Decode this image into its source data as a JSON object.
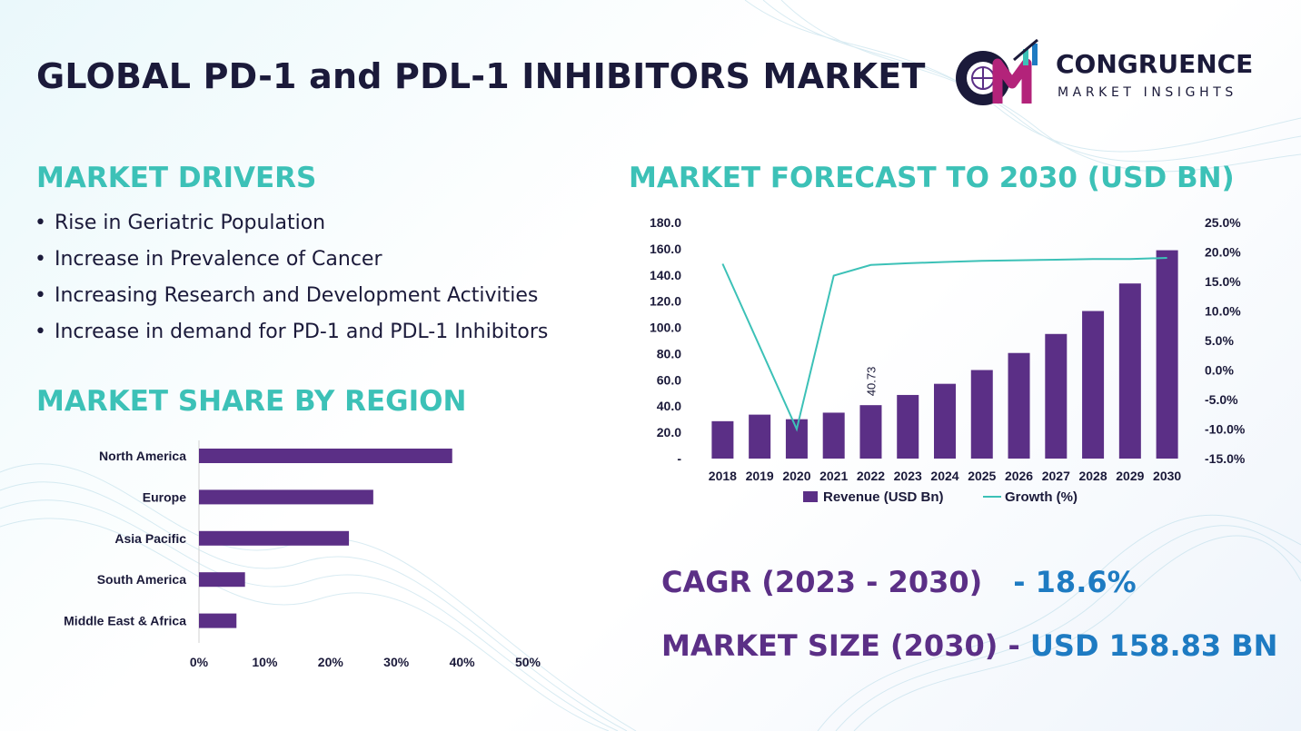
{
  "title": "GLOBAL PD-1 and PDL-1 INHIBITORS MARKET",
  "logo": {
    "line1": "CONGRUENCE",
    "line2": "MARKET INSIGHTS"
  },
  "drivers": {
    "heading": "MARKET DRIVERS",
    "items": [
      "Rise in Geriatric Population",
      "Increase in Prevalence of Cancer",
      "Increasing Research and Development  Activities",
      "Increase in demand for PD-1 and PDL-1 Inhibitors"
    ]
  },
  "region_heading": "MARKET SHARE BY REGION",
  "forecast_heading": "MARKET FORECAST TO 2030 (USD BN)",
  "kpis": {
    "cagr_label": "CAGR (2023 - 2030)",
    "cagr_value": "- 18.6%",
    "size_label": "MARKET SIZE (2030) -",
    "size_value": "USD 158.83 BN"
  },
  "colors": {
    "bar": "#5b2f86",
    "line": "#3cc1b7",
    "heading": "#3cc1b7",
    "title": "#1b1a3a",
    "value_blue": "#1e7bc2"
  },
  "chart_data": [
    {
      "type": "bar",
      "orientation": "horizontal",
      "categories": [
        "North America",
        "Europe",
        "Asia Pacific",
        "South America",
        "Middle East & Africa"
      ],
      "values": [
        38.5,
        26.5,
        22.8,
        7.0,
        5.7
      ],
      "xlim": [
        0,
        50
      ],
      "xticks": [
        "0%",
        "10%",
        "20%",
        "30%",
        "40%",
        "50%"
      ],
      "grid": false,
      "legend": "none"
    },
    {
      "type": "bar",
      "categories": [
        "2018",
        "2019",
        "2020",
        "2021",
        "2022",
        "2023",
        "2024",
        "2025",
        "2026",
        "2027",
        "2028",
        "2029",
        "2030"
      ],
      "series": [
        {
          "name": "Revenue (USD Bn)",
          "type": "bar",
          "axis": "left",
          "values": [
            28.5,
            33.5,
            30.0,
            35.0,
            40.73,
            48.5,
            57.0,
            67.5,
            80.5,
            95.0,
            112.5,
            133.5,
            158.83
          ]
        },
        {
          "name": "Growth (%)",
          "type": "line",
          "axis": "right",
          "values": [
            18.0,
            null,
            -10.0,
            16.0,
            17.8,
            18.1,
            18.3,
            18.5,
            18.6,
            18.7,
            18.8,
            18.8,
            19.0
          ]
        }
      ],
      "data_labels": [
        {
          "category": "2022",
          "text": "40.73"
        }
      ],
      "ylim_left": [
        0,
        180
      ],
      "yticks_left": [
        "-",
        "20.0",
        "40.0",
        "60.0",
        "80.0",
        "100.0",
        "120.0",
        "140.0",
        "160.0",
        "180.0"
      ],
      "ylim_right": [
        -15,
        25
      ],
      "yticks_right": [
        "-15.0%",
        "-10.0%",
        "-5.0%",
        "0.0%",
        "5.0%",
        "10.0%",
        "15.0%",
        "20.0%",
        "25.0%"
      ],
      "grid": false,
      "legend": "bottom-center"
    }
  ]
}
